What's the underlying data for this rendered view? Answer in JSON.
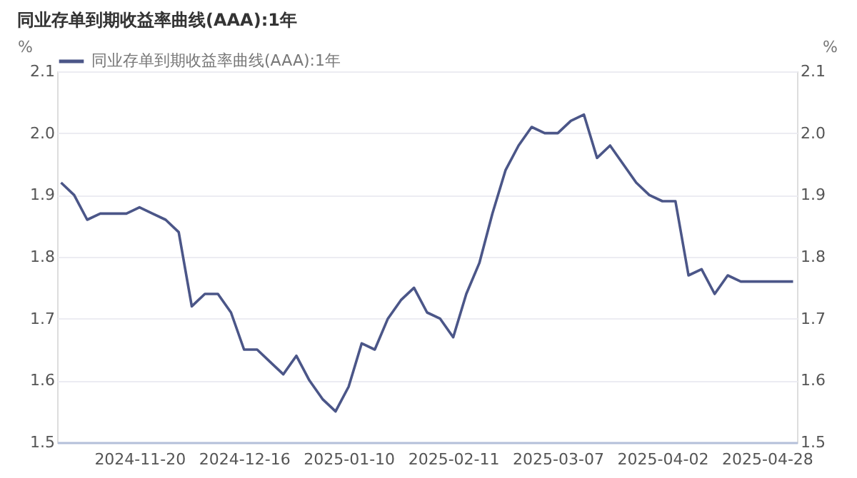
{
  "chart_data": {
    "type": "line",
    "title": "同业存单到期收益率曲线(AAA):1年",
    "ylabel": "%",
    "y2label": "%",
    "categories": [
      null,
      null,
      null,
      null,
      null,
      null,
      "2024-11-20",
      null,
      null,
      null,
      null,
      null,
      null,
      null,
      "2024-12-16",
      null,
      null,
      null,
      null,
      null,
      null,
      null,
      "2025-01-10",
      null,
      null,
      null,
      null,
      null,
      null,
      null,
      "2025-02-11",
      null,
      null,
      null,
      null,
      null,
      null,
      null,
      "2025-03-07",
      null,
      null,
      null,
      null,
      null,
      null,
      null,
      "2025-04-02",
      null,
      null,
      null,
      null,
      null,
      null,
      null,
      "2025-04-28",
      null,
      null
    ],
    "series": [
      {
        "name": "同业存单到期收益率曲线(AAA):1年",
        "color": "#4b5688",
        "values": [
          1.92,
          1.9,
          1.86,
          1.87,
          1.87,
          1.87,
          1.88,
          1.87,
          1.86,
          1.84,
          1.72,
          1.74,
          1.74,
          1.71,
          1.65,
          1.65,
          1.63,
          1.61,
          1.64,
          1.6,
          1.57,
          1.55,
          1.59,
          1.66,
          1.65,
          1.7,
          1.73,
          1.75,
          1.71,
          1.7,
          1.67,
          1.74,
          1.79,
          1.87,
          1.94,
          1.98,
          2.01,
          2.0,
          2.0,
          2.02,
          2.03,
          1.96,
          1.98,
          1.95,
          1.92,
          1.9,
          1.89,
          1.89,
          1.77,
          1.78,
          1.74,
          1.77,
          1.76,
          1.76,
          1.76,
          1.76,
          1.76
        ]
      }
    ],
    "ylim": [
      1.5,
      2.1
    ],
    "yticks": [
      1.5,
      1.6,
      1.7,
      1.8,
      1.9,
      {
        "value": 2,
        "label": "2.0"
      },
      2.1
    ],
    "y2lim": [
      1.5,
      2.1
    ],
    "y2ticks": [
      1.5,
      1.6,
      1.7,
      1.8,
      1.9,
      {
        "value": 2,
        "label": "2.0"
      },
      2.1
    ],
    "grid": "y",
    "legend": "top left",
    "line_style": "solid",
    "marker": "none"
  }
}
